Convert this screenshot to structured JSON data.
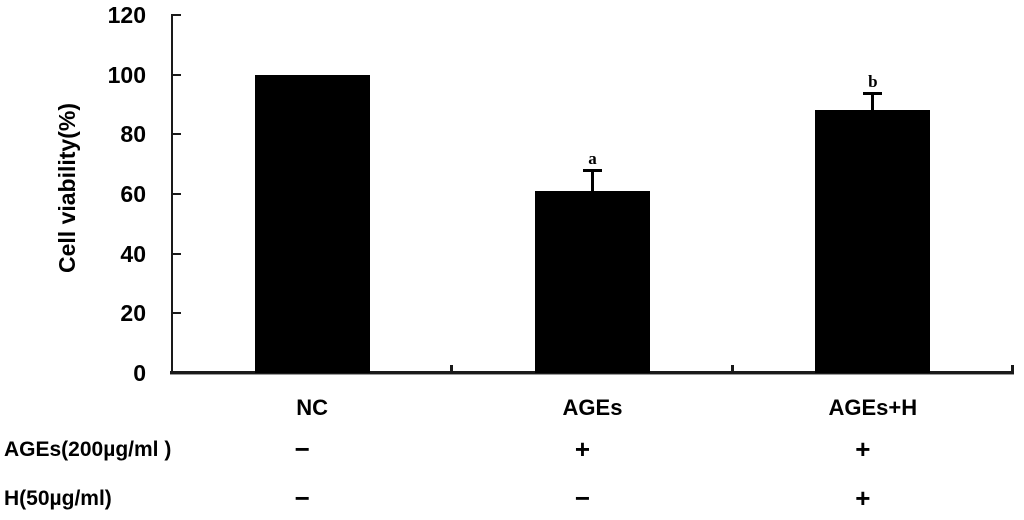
{
  "chart_data": {
    "type": "bar",
    "title": "",
    "xlabel": "",
    "ylabel": "Cell viability(%)",
    "ylim": [
      0,
      120
    ],
    "yticks": [
      0,
      20,
      40,
      60,
      80,
      100,
      120
    ],
    "categories": [
      "NC",
      "AGEs",
      "AGEs+H"
    ],
    "series": [
      {
        "name": "Cell viability",
        "values": [
          100,
          61,
          88
        ],
        "errors": [
          0,
          7,
          6
        ],
        "sig_labels": [
          "",
          "a",
          "b"
        ]
      }
    ],
    "bar_color": "#000000",
    "axis_color": "#1a1a1a",
    "grid": false,
    "legend_position": "none"
  },
  "treatment_table": {
    "rows": [
      {
        "label": "AGEs(200µg/ml )",
        "values": [
          "−",
          "+",
          "+"
        ]
      },
      {
        "label": "H(50µg/ml)",
        "values": [
          "−",
          "−",
          "+"
        ]
      }
    ]
  }
}
